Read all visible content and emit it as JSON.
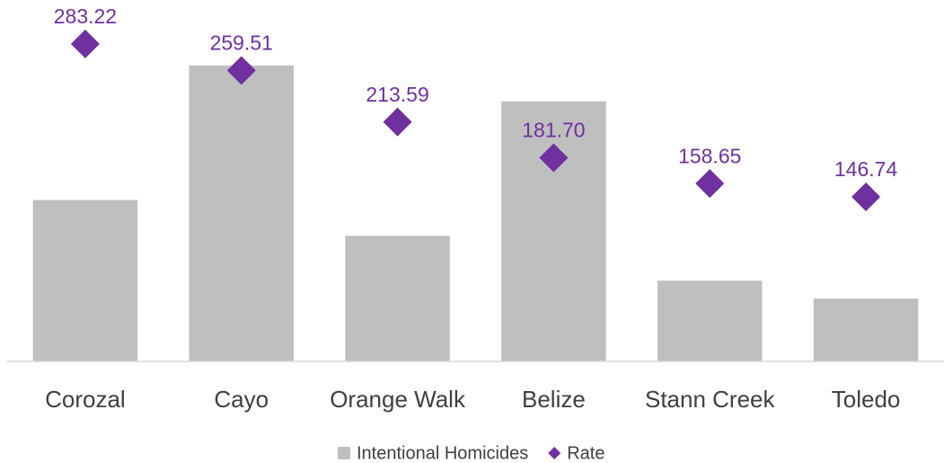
{
  "chart_data": {
    "type": "bar+scatter",
    "categories": [
      "Corozal",
      "Cayo",
      "Orange Walk",
      "Belize",
      "Stann Creek",
      "Toledo"
    ],
    "series": [
      {
        "name": "Intentional Homicides",
        "type": "bar",
        "color": "#bfbfbf",
        "values": [
          18,
          33,
          14,
          29,
          9,
          7
        ]
      },
      {
        "name": "Rate",
        "type": "scatter",
        "axis": "y2",
        "color": "#7030a0",
        "values": [
          283.22,
          259.51,
          213.59,
          181.7,
          158.65,
          146.74
        ],
        "value_labels": [
          "283.22",
          "259.51",
          "213.59",
          "181.70",
          "158.65",
          "146.74"
        ]
      }
    ],
    "ylim": [
      0,
      40
    ],
    "y2lim": [
      0,
      320
    ],
    "legend": "bottom"
  }
}
